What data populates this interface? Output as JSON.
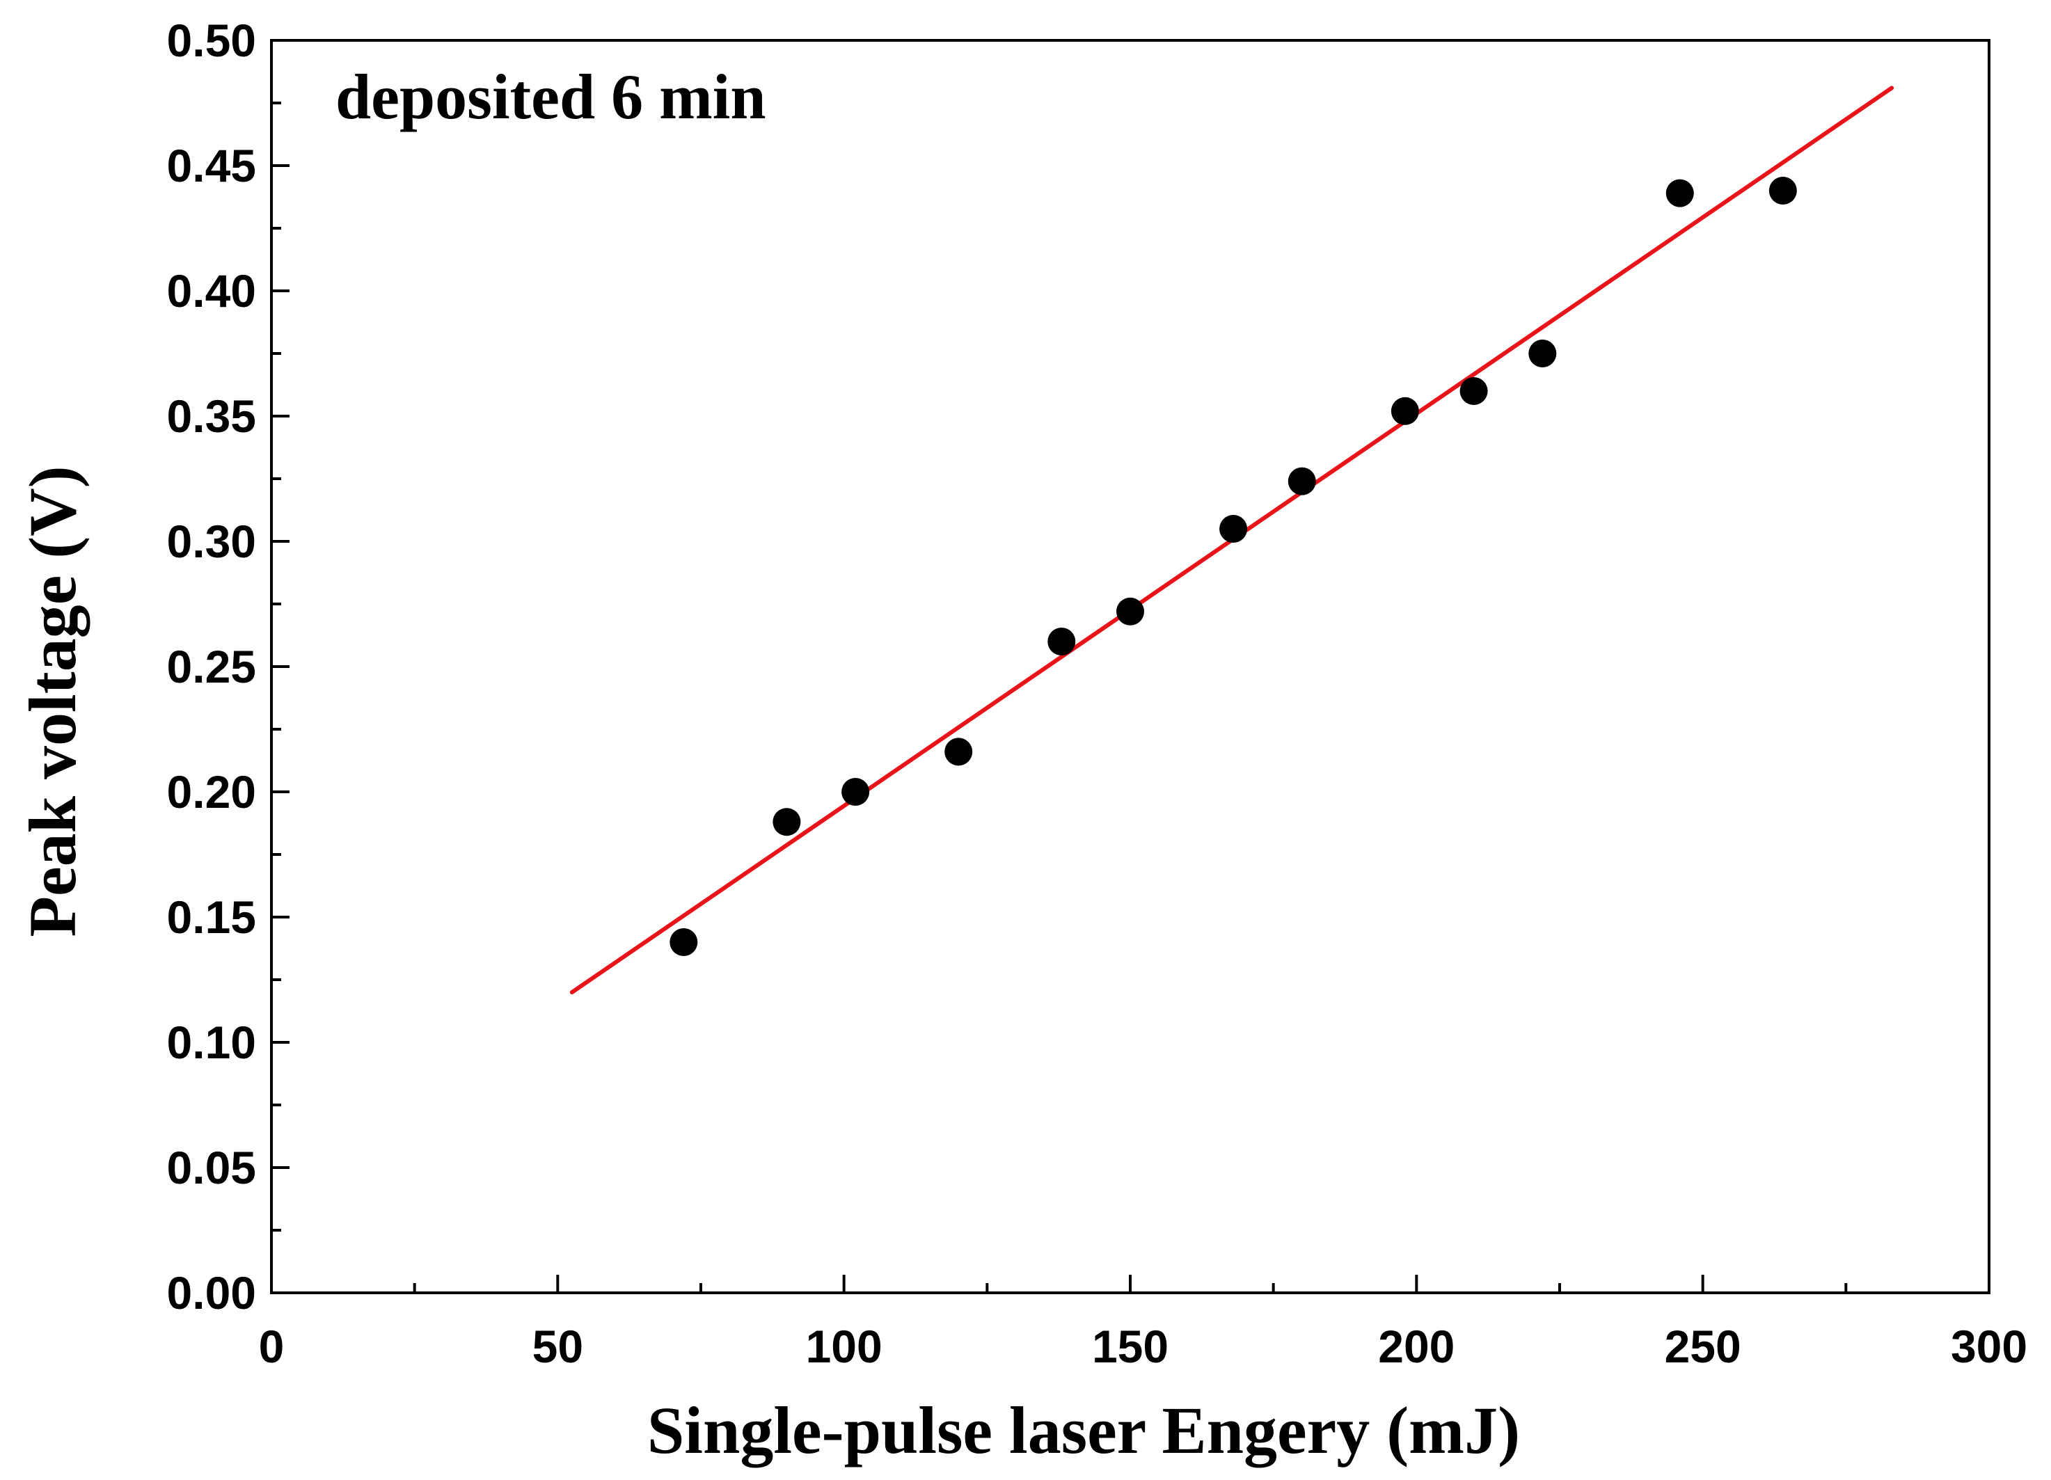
{
  "chart_data": {
    "type": "scatter",
    "annotation": "deposited 6 min",
    "xlabel": "Single-pulse laser Engery (mJ)",
    "ylabel": "Peak voltage (V)",
    "xlim": [
      0,
      300
    ],
    "ylim": [
      0,
      0.5
    ],
    "x_ticks": [
      0,
      50,
      100,
      150,
      200,
      250,
      300
    ],
    "x_tick_labels": [
      "0",
      "50",
      "100",
      "150",
      "200",
      "250",
      "300"
    ],
    "y_ticks": [
      0,
      0.05,
      0.1,
      0.15,
      0.2,
      0.25,
      0.3,
      0.35,
      0.4,
      0.45,
      0.5
    ],
    "y_tick_labels": [
      "0.00",
      "0.05",
      "0.10",
      "0.15",
      "0.20",
      "0.25",
      "0.30",
      "0.35",
      "0.40",
      "0.45",
      "0.50"
    ],
    "grid": false,
    "series": [
      {
        "type": "scatter",
        "color": "#000000",
        "points": [
          {
            "x": 72,
            "y": 0.14
          },
          {
            "x": 90,
            "y": 0.188
          },
          {
            "x": 102,
            "y": 0.2
          },
          {
            "x": 120,
            "y": 0.216
          },
          {
            "x": 138,
            "y": 0.26
          },
          {
            "x": 150,
            "y": 0.272
          },
          {
            "x": 168,
            "y": 0.305
          },
          {
            "x": 180,
            "y": 0.324
          },
          {
            "x": 198,
            "y": 0.352
          },
          {
            "x": 210,
            "y": 0.36
          },
          {
            "x": 222,
            "y": 0.375
          },
          {
            "x": 246,
            "y": 0.439
          },
          {
            "x": 264,
            "y": 0.44
          }
        ]
      },
      {
        "type": "line",
        "color": "#e8141a",
        "points": [
          {
            "x": 52.5,
            "y": 0.12
          },
          {
            "x": 283,
            "y": 0.481
          }
        ]
      }
    ]
  }
}
